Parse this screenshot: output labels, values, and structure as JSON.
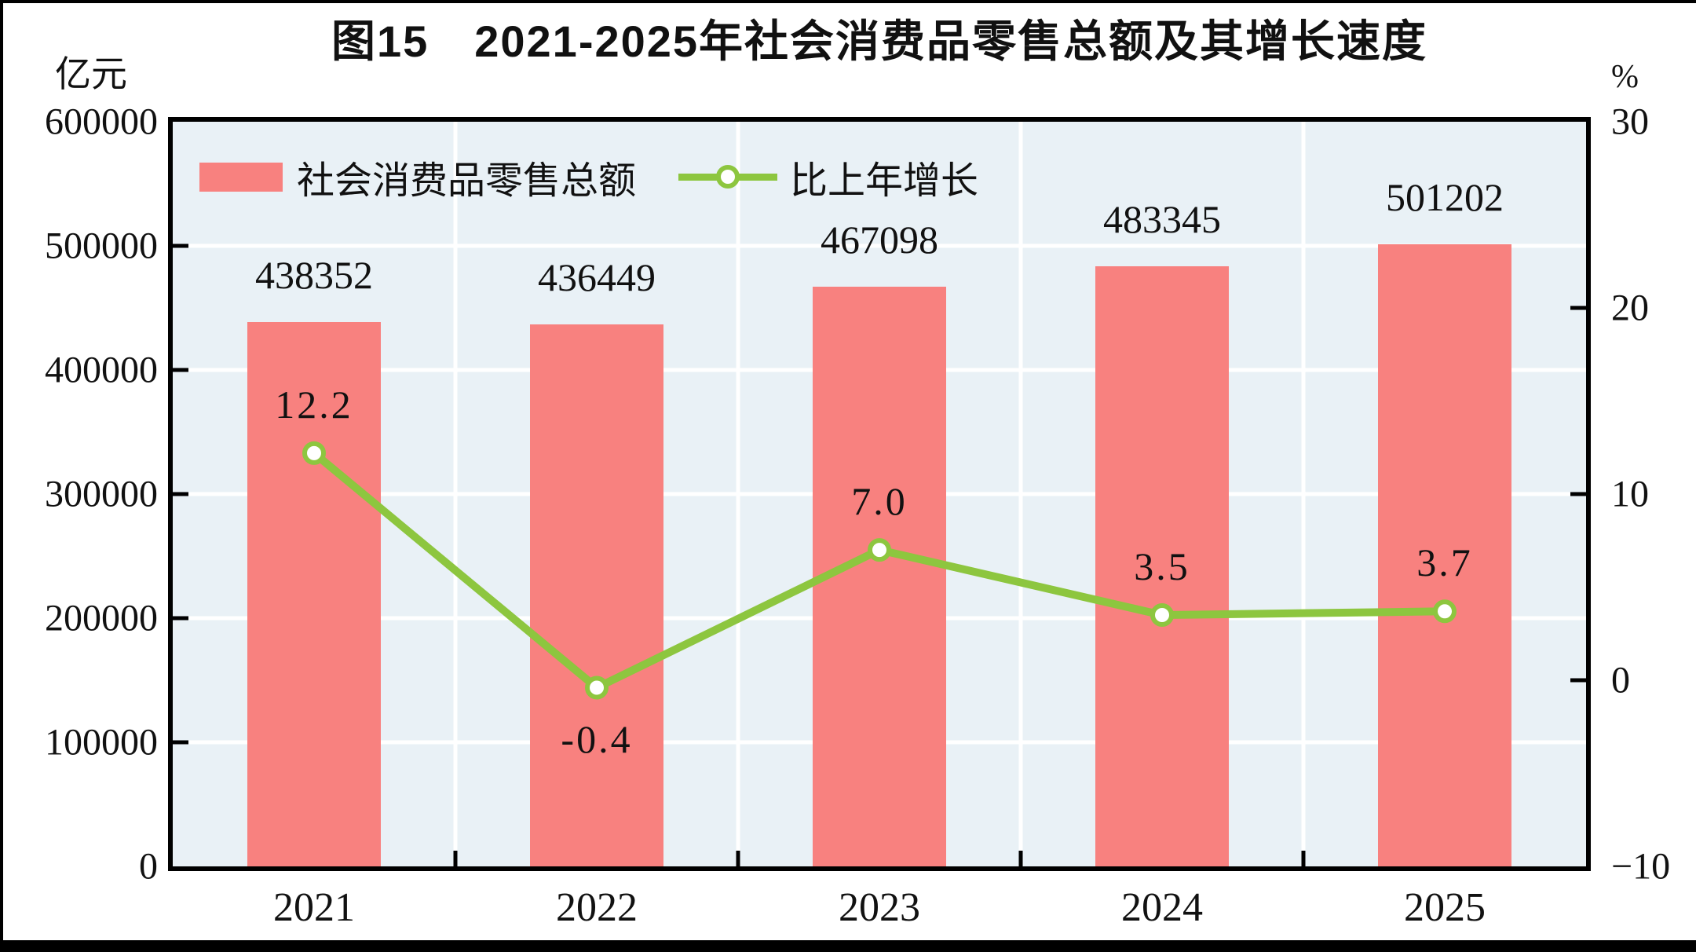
{
  "title": "图15　2021-2025年社会消费品零售总额及其增长速度",
  "left_axis": {
    "unit": "亿元",
    "ticks": [
      "600000",
      "500000",
      "400000",
      "300000",
      "200000",
      "100000",
      "0"
    ],
    "min": 0,
    "max": 600000
  },
  "right_axis": {
    "unit": "%",
    "ticks": [
      "30",
      "20",
      "10",
      "0",
      "-10"
    ],
    "min": -10,
    "max": 30
  },
  "legend": {
    "bar_label": "社会消费品零售总额",
    "line_label": "比上年增长"
  },
  "chart_data": {
    "type": "bar+line",
    "title": "图15　2021-2025年社会消费品零售总额及其增长速度",
    "categories": [
      "2021",
      "2022",
      "2023",
      "2024",
      "2025"
    ],
    "series": [
      {
        "name": "社会消费品零售总额",
        "type": "bar",
        "axis": "left",
        "unit": "亿元",
        "values": [
          438352,
          436449,
          467098,
          483345,
          501202
        ],
        "labels": [
          "438352",
          "436449",
          "467098",
          "483345",
          "501202"
        ]
      },
      {
        "name": "比上年增长",
        "type": "line",
        "axis": "right",
        "unit": "%",
        "values": [
          12.2,
          -0.4,
          7.0,
          3.5,
          3.7
        ],
        "labels": [
          "12.2",
          "-0.4",
          "7.0",
          "3.5",
          "3.7"
        ],
        "label_side": [
          "above",
          "below",
          "above",
          "above",
          "above"
        ]
      }
    ],
    "left_ylim": [
      0,
      600000
    ],
    "right_ylim": [
      -10,
      30
    ],
    "grid": true,
    "legend_position": "top-left"
  },
  "colors": {
    "bar": "#f8817f",
    "line": "#8dc63f",
    "marker_fill": "#ffffff",
    "plot_bg": "#e9f1f6",
    "gridline": "#ffffff",
    "axis": "#000000",
    "text": "#111111"
  }
}
